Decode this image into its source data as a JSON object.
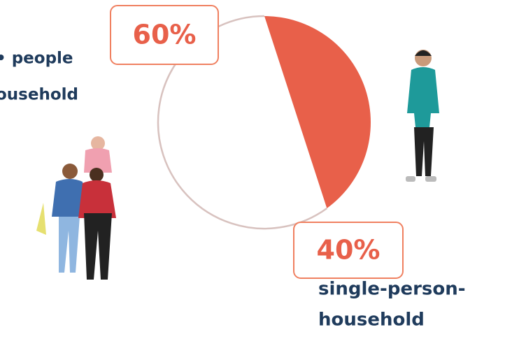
{
  "chart_data": {
    "type": "pie",
    "values": [
      40,
      60
    ],
    "value_labels": [
      "40%",
      "60%"
    ],
    "labels": [
      [
        "single-person-",
        "household"
      ],
      [
        "• people",
        "ousehold"
      ]
    ],
    "colors": [
      "#e8604a",
      "#ffffff"
    ],
    "outline_color": "#d8c2bf",
    "label_color": "#1f3b5c",
    "box_color": "#f08060"
  }
}
